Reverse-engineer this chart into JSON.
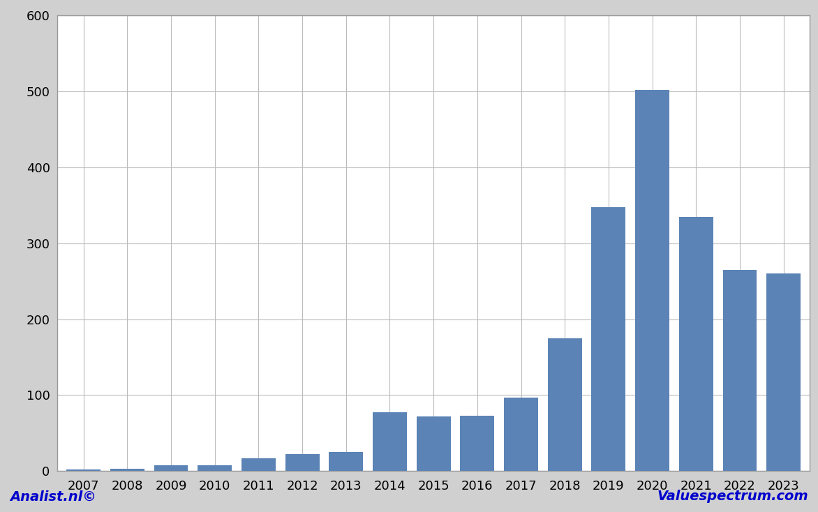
{
  "years": [
    2007,
    2008,
    2009,
    2010,
    2011,
    2012,
    2013,
    2014,
    2015,
    2016,
    2017,
    2018,
    2019,
    2020,
    2021,
    2022,
    2023
  ],
  "values": [
    2,
    3,
    8,
    8,
    17,
    22,
    25,
    77,
    72,
    73,
    97,
    175,
    347,
    502,
    335,
    265,
    260
  ],
  "bar_color": "#5b83b5",
  "ylim": [
    0,
    600
  ],
  "yticks": [
    0,
    100,
    200,
    300,
    400,
    500,
    600
  ],
  "plot_bg_color": "#ffffff",
  "outer_bg_color": "#d0d0d0",
  "footer_bg_color": "#c0c0c0",
  "grid_color": "#bbbbbb",
  "footer_left": "Analist.nl©",
  "footer_right": "Valuespectrum.com",
  "footer_fontsize": 14,
  "tick_fontsize": 13,
  "border_color": "#999999"
}
